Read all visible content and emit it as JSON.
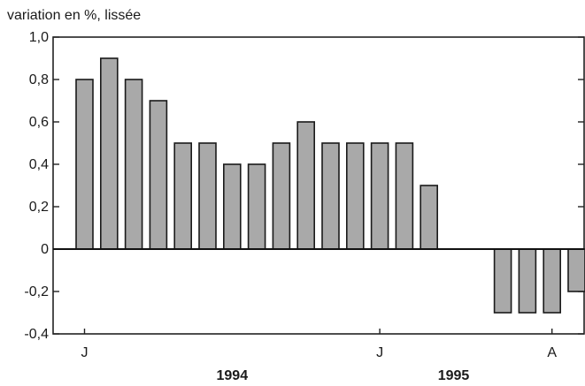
{
  "chart_data": {
    "type": "bar",
    "ylabel": "variation en %, lissée",
    "ylim": [
      -0.4,
      1.0
    ],
    "yticks": [
      {
        "v": 1.0,
        "label": "1,0"
      },
      {
        "v": 0.8,
        "label": "0,8"
      },
      {
        "v": 0.6,
        "label": "0,6"
      },
      {
        "v": 0.4,
        "label": "0,4"
      },
      {
        "v": 0.2,
        "label": "0,2"
      },
      {
        "v": 0.0,
        "label": "0"
      },
      {
        "v": -0.2,
        "label": "-0,2"
      },
      {
        "v": -0.4,
        "label": "-0,4"
      }
    ],
    "month_labels": [
      {
        "index": 0,
        "label": "J"
      },
      {
        "index": 12,
        "label": "J"
      },
      {
        "index": 19,
        "label": "A"
      }
    ],
    "year_labels": [
      {
        "index": 6,
        "label": "1994"
      },
      {
        "index": 15,
        "label": "1995"
      }
    ],
    "values": [
      0.8,
      0.9,
      0.8,
      0.7,
      0.5,
      0.5,
      0.4,
      0.4,
      0.5,
      0.6,
      0.5,
      0.5,
      0.5,
      0.5,
      0.3,
      null,
      null,
      -0.3,
      -0.3,
      -0.3,
      -0.2
    ],
    "bar_color": "#a9a9a9",
    "grid": false
  }
}
